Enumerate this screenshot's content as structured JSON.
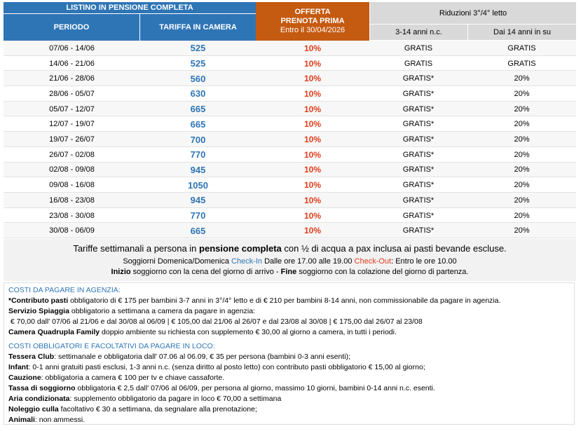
{
  "table": {
    "header": {
      "listino": "LISTINO IN PENSIONE COMPLETA",
      "periodo": "PERIODO",
      "tariffa": "TARIFFA IN CAMERA",
      "offerta": [
        "OFFERTA",
        "PRENOTA PRIMA",
        "Entro il 30/04/2026"
      ],
      "riduzioni": "Riduzioni 3°/4° letto",
      "sub": [
        "3-14 anni n.c.",
        "Dai 14 anni in su"
      ]
    },
    "rows": [
      [
        "07/06 - 14/06",
        525,
        "10%",
        "GRATIS",
        "GRATIS"
      ],
      [
        "14/06 - 21/06",
        525,
        "10%",
        "GRATIS",
        "GRATIS"
      ],
      [
        "21/06 - 28/06",
        560,
        "10%",
        "GRATIS*",
        "20%"
      ],
      [
        "28/06 - 05/07",
        630,
        "10%",
        "GRATIS*",
        "20%"
      ],
      [
        "05/07 - 12/07",
        665,
        "10%",
        "GRATIS*",
        "20%"
      ],
      [
        "12/07 - 19/07",
        665,
        "10%",
        "GRATIS*",
        "20%"
      ],
      [
        "19/07 - 26/07",
        700,
        "10%",
        "GRATIS*",
        "20%"
      ],
      [
        "26/07 - 02/08",
        770,
        "10%",
        "GRATIS*",
        "20%"
      ],
      [
        "02/08 - 09/08",
        945,
        "10%",
        "GRATIS*",
        "20%"
      ],
      [
        "09/08 - 16/08",
        1050,
        "10%",
        "GRATIS*",
        "20%"
      ],
      [
        "16/08 - 23/08",
        945,
        "10%",
        "GRATIS*",
        "20%"
      ],
      [
        "23/08 - 30/08",
        770,
        "10%",
        "GRATIS*",
        "20%"
      ],
      [
        "30/08 - 06/09",
        665,
        "10%",
        "GRATIS*",
        "20%"
      ]
    ]
  },
  "notes": {
    "summary": [
      "Tariffe settimanali a persona in ",
      "pensione completa",
      " con ½ di acqua a pax inclusa ai pasti bevande escluse."
    ],
    "checkin": [
      "Soggiorni Domenica/Domenica ",
      "Check-In",
      " Dalle ore 17.00 alle 19.00 ",
      "Check-Out",
      ": Entro le ore 10.00"
    ],
    "start": [
      "Inizio",
      " soggiorno con la cena del giorno di arrivo - ",
      "Fine",
      " soggiorno con la colazione del giorno di partenza."
    ]
  },
  "costs": [
    {
      "title": "COSTI DA PAGARE IN AGENZIA:",
      "items": [
        [
          "*Contributo pasti",
          " obbligatorio di € 175 per bambini 3-7 anni in 3°/4° letto e di € 210 per bambini 8-14 anni, non commissionabile da pagare in agenzia."
        ],
        [
          "Servizio Spiaggia",
          " obbligatorio a settimana a camera da pagare in agenzia:"
        ],
        [
          " € 70,00 dall' 07/06 al 21/06 e dal 30/08 al 06/09 | € 105,00 dal 21/06 al 26/07 e dal 23/08 al 30/08 | € 175,00 dal 26/07 al 23/08"
        ],
        [
          "Camera Quadrupla Family",
          " doppio ambiente su richiesta con supplemento € 30,00 al giorno a camera, in tutti i periodi."
        ]
      ]
    },
    {
      "title": "COSTI OBBLIGATORI E FACOLTATIVI DA PAGARE IN LOCO:",
      "items": [
        [
          "Tessera Club",
          ": settimanale e obbligatoria dall' 07.06 al 06.09, € 35 per persona (bambini 0-3 anni esenti);"
        ],
        [
          "Infant",
          ": 0-1 anni gratuiti pasti esclusi, 1-3 anni n.c. (senza diritto al posto letto) con contributo pasti obbligatorio € 15,00 al giorno;"
        ],
        [
          "Cauzione",
          ": obbligatoria a camera € 100 per tv e chiave cassaforte."
        ],
        [
          "Tassa di soggiorno",
          " obbligatoria € 2,5 dall' 07/06 al 06/09, per persona al giorno, massimo 10 giorni, bambini 0-14 anni n.c. esenti."
        ],
        [
          "Aria condizionata",
          ": supplemento obbligatorio da pagare in loco € 70,00 a settimana"
        ],
        [
          "Noleggio culla",
          " facoltativo € 30 a settimana, da segnalare alla prenotazione;"
        ],
        [
          "Animali",
          ": non ammessi."
        ]
      ]
    }
  ]
}
